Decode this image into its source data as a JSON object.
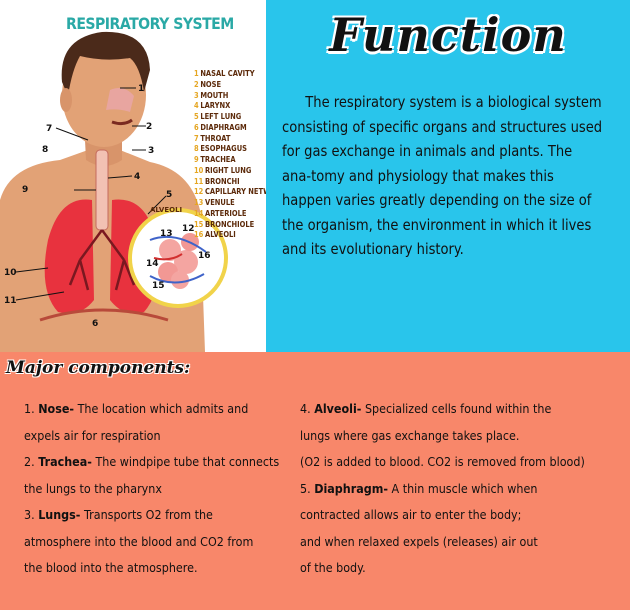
{
  "diagram": {
    "title": "RESPIRATORY SYSTEM",
    "legend": [
      {
        "num": "1",
        "label": "NASAL CAVITY"
      },
      {
        "num": "2",
        "label": "NOSE"
      },
      {
        "num": "3",
        "label": "MOUTH"
      },
      {
        "num": "4",
        "label": "LARYNX"
      },
      {
        "num": "5",
        "label": "LEFT LUNG"
      },
      {
        "num": "6",
        "label": "DIAPHRAGM"
      },
      {
        "num": "7",
        "label": "THROAT"
      },
      {
        "num": "8",
        "label": "ESOPHAGUS"
      },
      {
        "num": "9",
        "label": "TRACHEA"
      },
      {
        "num": "10",
        "label": "RIGHT LUNG"
      },
      {
        "num": "11",
        "label": "BRONCHI"
      },
      {
        "num": "12",
        "label": "CAPILLARY NETWORK"
      },
      {
        "num": "13",
        "label": "VENULE"
      },
      {
        "num": "14",
        "label": "ARTERIOLE"
      },
      {
        "num": "15",
        "label": "BRONCHIOLE"
      },
      {
        "num": "16",
        "label": "ALVEOLI"
      }
    ],
    "callouts": [
      "1",
      "2",
      "3",
      "4",
      "5",
      "6",
      "7",
      "8",
      "9",
      "10",
      "11",
      "12",
      "13",
      "14",
      "15",
      "16"
    ],
    "alveoli_label": "ALVEOLI",
    "colors": {
      "skin": "#e2a276",
      "lung": "#e8323e",
      "title": "#2aa9a6",
      "legend_num": "#e5a622"
    }
  },
  "function": {
    "title": "Function",
    "body": "The respiratory system is a biological system consisting of specific organs and structures used for gas exchange in animals and plants. The ana-tomy and physiology that makes this happen varies greatly depending on the size of the organism, the environment in which it lives and its evolutionary history."
  },
  "components": {
    "title": "Major components:",
    "left": [
      {
        "num": "1.",
        "term": "Nose-",
        "lines": [
          "The location which admits and",
          "expels air for respiration"
        ]
      },
      {
        "num": "2.",
        "term": "Trachea-",
        "lines": [
          "The windpipe tube that connects",
          "the lungs to the pharynx"
        ]
      },
      {
        "num": "3.",
        "term": "Lungs-",
        "lines": [
          "Transports O2 from the",
          "atmosphere into the blood and CO2 from",
          "the blood into the atmosphere."
        ]
      }
    ],
    "right": [
      {
        "num": "4.",
        "term": "Alveoli-",
        "lines": [
          "Specialized cells found within the",
          "lungs where gas exchange takes place.",
          "(O2 is added to blood. CO2 is removed from blood)"
        ]
      },
      {
        "num": "5.",
        "term": "Diaphragm-",
        "lines": [
          "A thin muscle which when",
          "contracted allows air to enter the body;",
          "and when relaxed expels (releases) air out",
          "of the body."
        ]
      }
    ]
  },
  "colors": {
    "top_right_bg": "#29c5eb",
    "bottom_bg": "#f8876a",
    "top_left_bg": "#ffffff"
  }
}
